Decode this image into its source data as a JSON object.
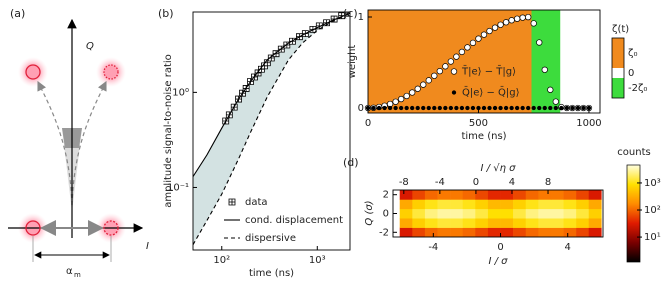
{
  "diagram": {
    "label": "(a)",
    "y_axis": "Q",
    "x_axis": "I",
    "separation": "α",
    "separation_sub": "m"
  },
  "chart_data": [
    {
      "type": "line",
      "label": "(b)",
      "x_label": "time (ns)",
      "y_label": "amplitude signal-to-noise ratio",
      "log_x": true,
      "log_y": true,
      "xlim": [
        50,
        2200
      ],
      "ylim": [
        0.022,
        7
      ],
      "xticks": [
        {
          "value": 100,
          "label": "10²"
        },
        {
          "value": 1000,
          "label": "10³"
        }
      ],
      "yticks": [
        {
          "value": 0.1,
          "label": "10⁻¹"
        },
        {
          "value": 1,
          "label": "10⁰"
        }
      ],
      "shade_color": "#d3e2e2",
      "legend": "lower right",
      "series": [
        {
          "name": "data",
          "color": "#000000",
          "marker": "square-cross",
          "x": [
            110,
            120,
            135,
            150,
            165,
            180,
            200,
            220,
            240,
            260,
            280,
            300,
            330,
            370,
            420,
            480,
            550,
            650,
            750,
            900,
            1050,
            1250,
            1500,
            1800,
            2100
          ],
          "values": [
            0.5,
            0.58,
            0.7,
            0.85,
            0.98,
            1.1,
            1.3,
            1.45,
            1.6,
            1.75,
            1.9,
            2.05,
            2.3,
            2.55,
            2.85,
            3.15,
            3.45,
            3.85,
            4.15,
            4.6,
            5.0,
            5.4,
            5.9,
            6.4,
            6.8
          ]
        },
        {
          "name": "cond. displacement",
          "color": "#000000",
          "style": "solid",
          "x": [
            50,
            70,
            100,
            150,
            200,
            300,
            500,
            700,
            1000,
            1500,
            2200
          ],
          "values": [
            0.13,
            0.22,
            0.42,
            0.85,
            1.3,
            2.2,
            3.3,
            4.0,
            4.8,
            5.8,
            6.8
          ]
        },
        {
          "name": "dispersive",
          "color": "#000000",
          "style": "dashed",
          "x": [
            50,
            70,
            100,
            150,
            200,
            300,
            500,
            700,
            1000,
            1500,
            2200
          ],
          "values": [
            0.025,
            0.045,
            0.085,
            0.2,
            0.38,
            0.9,
            2.2,
            3.3,
            4.5,
            5.7,
            6.8
          ]
        }
      ]
    },
    {
      "type": "scatter",
      "label": "(c)",
      "x_label": "time (ns)",
      "y_label": "weight",
      "xlim": [
        0,
        1050
      ],
      "ylim": [
        -0.055,
        1.077
      ],
      "xticks": [
        0,
        500,
        1000
      ],
      "yticks": [
        0,
        1
      ],
      "legend": "center",
      "regions": [
        {
          "start": 0,
          "end": 740,
          "color": "#f08a1e"
        },
        {
          "start": 740,
          "end": 870,
          "color": "#3ddc3d"
        }
      ],
      "colorbar": {
        "title": "ζ(t)",
        "segments": [
          {
            "label": "ζ₀",
            "color": "#f08a1e"
          },
          {
            "label": "0",
            "color": "#ffffff"
          },
          {
            "label": "-2ζ₀",
            "color": "#3ddc3d"
          }
        ]
      },
      "x": [
        0,
        25,
        50,
        75,
        100,
        125,
        150,
        175,
        200,
        225,
        250,
        275,
        300,
        325,
        350,
        375,
        400,
        425,
        450,
        475,
        500,
        525,
        550,
        575,
        600,
        625,
        650,
        675,
        700,
        725,
        750,
        775,
        800,
        825,
        850,
        875,
        900,
        925,
        950,
        975,
        1000
      ],
      "series": [
        {
          "name": "T̄|e⟩ − T̄|g⟩",
          "color": "#000000",
          "fill": "#ffffff",
          "values": [
            0,
            0.003,
            0.011,
            0.025,
            0.044,
            0.069,
            0.098,
            0.132,
            0.17,
            0.211,
            0.256,
            0.304,
            0.354,
            0.405,
            0.458,
            0.511,
            0.564,
            0.616,
            0.666,
            0.716,
            0.762,
            0.806,
            0.846,
            0.883,
            0.915,
            0.942,
            0.964,
            0.981,
            0.993,
            0.999,
            0.93,
            0.72,
            0.42,
            0.2,
            0.07,
            0.01,
            0,
            0,
            0,
            0,
            0
          ]
        },
        {
          "name": "Q̄|e⟩ − Q̄|g⟩",
          "color": "#000000",
          "fill": "#000000",
          "values": [
            0,
            0,
            0,
            0,
            0,
            0,
            0,
            0,
            0,
            0,
            0,
            0,
            0,
            0,
            0,
            0,
            0,
            0,
            0,
            0,
            0,
            0,
            0,
            0,
            0,
            0,
            0,
            0,
            0,
            0,
            0,
            0,
            0,
            0,
            0,
            0,
            0,
            0,
            0,
            0,
            0
          ]
        }
      ]
    },
    {
      "type": "heatmap",
      "label": "(d)",
      "x_label": "I / σ",
      "x2_label": "I / √η σ",
      "y_label": "Q (σ)",
      "xlim": [
        -6.4,
        6.1
      ],
      "x2lim": [
        -9.2,
        14.1
      ],
      "ylim": [
        -2.5,
        2.5
      ],
      "xticks": [
        -4,
        0,
        4
      ],
      "x2ticks": [
        -8,
        -4,
        0,
        4,
        8
      ],
      "yticks": [
        -2,
        0,
        2
      ],
      "x_bins": [
        -6,
        -5.25,
        -4.5,
        -3.75,
        -3,
        -2.25,
        -1.5,
        -0.75,
        0,
        0.75,
        1.5,
        2.25,
        3,
        3.75,
        4.5,
        5.25,
        6
      ],
      "y_bins": [
        -2.5,
        -1.5,
        -0.5,
        0.5,
        1.5,
        2.5
      ],
      "counts": [
        [
          29,
          60,
          100,
          128,
          128,
          100,
          63,
          39,
          39,
          63,
          100,
          128,
          128,
          100,
          60,
          29
        ],
        [
          297,
          629,
          1037,
          1331,
          1333,
          1044,
          661,
          407,
          407,
          661,
          1044,
          1333,
          1331,
          1037,
          629,
          297
        ],
        [
          648,
          1374,
          2265,
          2907,
          2910,
          2280,
          1443,
          888,
          888,
          1443,
          2280,
          2910,
          2907,
          2265,
          1374,
          648
        ],
        [
          297,
          629,
          1037,
          1331,
          1333,
          1044,
          661,
          407,
          407,
          661,
          1044,
          1333,
          1331,
          1037,
          629,
          297
        ],
        [
          29,
          60,
          100,
          128,
          128,
          100,
          63,
          39,
          39,
          63,
          100,
          128,
          128,
          100,
          60,
          29
        ]
      ],
      "colorbar": {
        "title": "counts",
        "log": true,
        "clim": [
          1.2,
          4600
        ],
        "ticks": [
          {
            "value": 10,
            "label": "10¹"
          },
          {
            "value": 100,
            "label": "10²"
          },
          {
            "value": 1000,
            "label": "10³"
          }
        ],
        "colormap": [
          "#000000",
          "#7a0000",
          "#e01b00",
          "#ff8c00",
          "#ffe000",
          "#ffffe0"
        ]
      }
    }
  ]
}
